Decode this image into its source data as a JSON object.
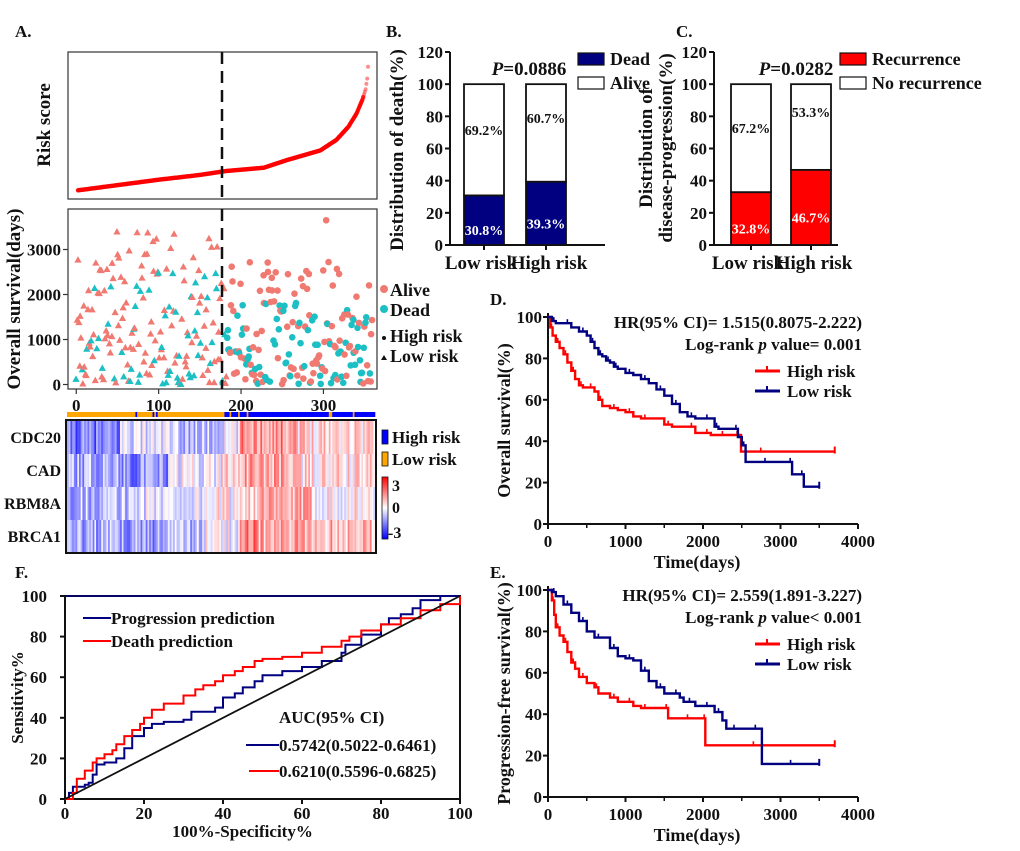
{
  "colors": {
    "dead_bar": "#000080",
    "recurrence_bar": "#ff0000",
    "high_risk_km": "#ff0000",
    "low_risk_km": "#000080",
    "alive_point": "#f07a72",
    "dead_point": "#1bbfc4",
    "heat_high_risk": "#0000ff",
    "heat_low_risk": "#ffa500",
    "heat_pos": "#ff0000",
    "heat_neg": "#0000ff",
    "risk_curve": "#ff0000"
  },
  "chart_data": [
    {
      "id": "A-risk",
      "panel_label": "A.",
      "type": "scatter",
      "title": "",
      "ylabel": "Risk score",
      "xlabel": "",
      "cutoff_index": 183,
      "n_patients": 360,
      "description": "Sorted risk score curve, slowly increasing then rising steeply at the top ranks",
      "curve_points": [
        [
          0,
          0.02
        ],
        [
          50,
          0.06
        ],
        [
          100,
          0.1
        ],
        [
          150,
          0.135
        ],
        [
          183,
          0.165
        ],
        [
          230,
          0.19
        ],
        [
          260,
          0.25
        ],
        [
          300,
          0.32
        ],
        [
          320,
          0.4
        ],
        [
          335,
          0.5
        ],
        [
          345,
          0.6
        ],
        [
          352,
          0.7
        ],
        [
          356,
          0.78
        ],
        [
          358,
          0.86
        ],
        [
          359,
          0.95
        ]
      ]
    },
    {
      "id": "A-survival",
      "type": "scatter",
      "ylabel": "Overall survival(days)",
      "xlabel": "",
      "x_ticks": [
        "0",
        "100",
        "200",
        "300"
      ],
      "y_ticks": [
        "0",
        "1000",
        "2000",
        "3000"
      ],
      "xlim": [
        -10,
        365
      ],
      "ylim": [
        -100,
        3900
      ],
      "cutoff_index": 183,
      "legend": [
        {
          "label": "Alive",
          "marker": "circle",
          "color_key": "alive_point"
        },
        {
          "label": "Dead",
          "marker": "circle",
          "color_key": "dead_point"
        },
        {
          "label": "High risk",
          "marker": "circle-black"
        },
        {
          "label": "Low risk",
          "marker": "triangle-black"
        }
      ]
    },
    {
      "id": "A-heatmap",
      "type": "heatmap",
      "genes": [
        "CDC20",
        "CAD",
        "RBM8A",
        "BRCA1"
      ],
      "legend_groups": [
        "High risk",
        "Low risk"
      ],
      "colorbar_ticks": [
        "3",
        "0",
        "-3"
      ],
      "value_range": [
        -3,
        3
      ]
    },
    {
      "id": "B",
      "panel_label": "B.",
      "type": "bar",
      "stacked": true,
      "categories": [
        "Low risk",
        "High risk"
      ],
      "series": [
        {
          "name": "Dead",
          "values": [
            30.8,
            39.3
          ],
          "labels": [
            "30.8%",
            "39.3%"
          ],
          "color_key": "dead_bar"
        },
        {
          "name": "Alive",
          "values": [
            69.2,
            60.7
          ],
          "labels": [
            "69.2%",
            "60.7%"
          ],
          "color": "#ffffff"
        }
      ],
      "ylabel": "Distribution of  death(%)",
      "ylim": [
        0,
        120
      ],
      "y_ticks": [
        "0",
        "20",
        "40",
        "60",
        "80",
        "100",
        "120"
      ],
      "annotation": "P=0.0886",
      "annotation_p": "P",
      "annotation_rest": "=0.0886",
      "legend_position": "top-right"
    },
    {
      "id": "C",
      "panel_label": "C.",
      "type": "bar",
      "stacked": true,
      "categories": [
        "Low risk",
        "High risk"
      ],
      "series": [
        {
          "name": "Recurrence",
          "values": [
            32.8,
            46.7
          ],
          "labels": [
            "32.8%",
            "46.7%"
          ],
          "color_key": "recurrence_bar"
        },
        {
          "name": "No recurrence",
          "values": [
            67.2,
            53.3
          ],
          "labels": [
            "67.2%",
            "53.3%"
          ],
          "color": "#ffffff"
        }
      ],
      "ylabel_line1": "Distribution of",
      "ylabel_line2": "disease-progression(%)",
      "ylim": [
        0,
        120
      ],
      "y_ticks": [
        "0",
        "20",
        "40",
        "60",
        "80",
        "100",
        "120"
      ],
      "annotation_p": "P",
      "annotation_rest": "=0.0282",
      "legend_position": "top-right"
    },
    {
      "id": "D",
      "panel_label": "D.",
      "type": "line",
      "xlabel": "Time(days)",
      "ylabel": "Overall survival(%)",
      "xlim": [
        0,
        4000
      ],
      "ylim": [
        0,
        100
      ],
      "x_ticks": [
        "0",
        "1000",
        "2000",
        "3000",
        "4000"
      ],
      "y_ticks": [
        "0",
        "20",
        "40",
        "60",
        "80",
        "100"
      ],
      "hr_text": "HR(95% CI)= 1.515(0.8075-2.222)",
      "logrank_prefix": "Log-rank ",
      "logrank_p": "p",
      "logrank_suffix": " value= 0.001",
      "legend_position": "top-right",
      "series": [
        {
          "name": "High risk",
          "color_key": "high_risk_km",
          "x": [
            0,
            30,
            60,
            100,
            150,
            200,
            250,
            300,
            350,
            400,
            450,
            500,
            600,
            650,
            700,
            800,
            900,
            1000,
            1100,
            1200,
            1300,
            1500,
            1600,
            1800,
            1900,
            2000,
            2100,
            2200,
            2300,
            2400,
            2480,
            2490,
            3000,
            3700
          ],
          "y": [
            100,
            95,
            91,
            88,
            85,
            82,
            78,
            74,
            70,
            67,
            66,
            66,
            64,
            60,
            57,
            56,
            55,
            54,
            52,
            51,
            51,
            48,
            47,
            47,
            44,
            44,
            43,
            43,
            43,
            43,
            43,
            35,
            35,
            35
          ]
        },
        {
          "name": "Low risk",
          "color_key": "low_risk_km",
          "x": [
            0,
            50,
            100,
            200,
            300,
            400,
            500,
            550,
            600,
            650,
            700,
            750,
            800,
            850,
            900,
            1000,
            1100,
            1200,
            1300,
            1400,
            1500,
            1600,
            1700,
            1800,
            1900,
            2000,
            2100,
            2150,
            2200,
            2400,
            2450,
            2500,
            2550,
            2600,
            3000,
            3100,
            3150,
            3250,
            3300,
            3500
          ],
          "y": [
            100,
            98,
            97,
            97,
            95,
            93,
            91,
            88,
            85,
            82,
            81,
            79,
            78,
            76,
            75,
            73,
            72,
            70,
            68,
            65,
            62,
            58,
            54,
            52,
            51,
            51,
            51,
            47,
            46,
            46,
            42,
            38,
            30,
            30,
            30,
            30,
            24,
            24,
            18,
            18
          ]
        }
      ]
    },
    {
      "id": "E",
      "panel_label": "E.",
      "type": "line",
      "xlabel": "Time(days)",
      "ylabel": "Progression-free survival(%)",
      "xlim": [
        0,
        4000
      ],
      "ylim": [
        0,
        100
      ],
      "x_ticks": [
        "0",
        "1000",
        "2000",
        "3000",
        "4000"
      ],
      "y_ticks": [
        "0",
        "20",
        "40",
        "60",
        "80",
        "100"
      ],
      "hr_text": "HR(95% CI)= 2.559(1.891-3.227)",
      "logrank_prefix": "Log-rank ",
      "logrank_p": "p",
      "logrank_suffix": " value< 0.001",
      "legend_position": "top-right",
      "series": [
        {
          "name": "High risk",
          "color_key": "high_risk_km",
          "x": [
            0,
            50,
            80,
            100,
            150,
            200,
            250,
            300,
            350,
            400,
            500,
            600,
            650,
            800,
            900,
            1000,
            1100,
            1200,
            1300,
            1500,
            1550,
            1700,
            1900,
            2000,
            2030,
            2300,
            3000,
            3700
          ],
          "y": [
            100,
            95,
            88,
            82,
            78,
            75,
            70,
            65,
            62,
            58,
            55,
            53,
            50,
            48,
            46,
            46,
            44,
            43,
            43,
            43,
            38,
            38,
            38,
            38,
            25,
            25,
            25,
            25
          ]
        },
        {
          "name": "Low risk",
          "color_key": "low_risk_km",
          "x": [
            0,
            50,
            100,
            200,
            300,
            400,
            500,
            600,
            700,
            800,
            900,
            1000,
            1100,
            1200,
            1300,
            1400,
            1500,
            1600,
            1700,
            1750,
            1900,
            2000,
            2100,
            2150,
            2250,
            2300,
            2500,
            2600,
            2750,
            2760,
            3500
          ],
          "y": [
            100,
            99,
            97,
            93,
            89,
            85,
            80,
            77,
            77,
            72,
            68,
            67,
            66,
            61,
            56,
            53,
            50,
            50,
            48,
            46,
            44,
            44,
            44,
            41,
            37,
            33,
            33,
            33,
            33,
            16,
            16
          ]
        }
      ]
    },
    {
      "id": "F",
      "panel_label": "F.",
      "type": "line",
      "xlabel": "100%-Specificity%",
      "ylabel": "Sensitivity%",
      "xlim": [
        0,
        100
      ],
      "ylim": [
        0,
        100
      ],
      "x_ticks": [
        "0",
        "20",
        "40",
        "60",
        "80",
        "100"
      ],
      "y_ticks": [
        "0",
        "20",
        "40",
        "60",
        "80",
        "100"
      ],
      "legend_position": "top-left",
      "auc_title": "AUC(95% CI)",
      "series": [
        {
          "name": "Progression prediction",
          "auc_label": "0.5742(0.5022-0.6461)",
          "color_key": "low_risk_km",
          "x": [
            0,
            1,
            2,
            5,
            6,
            7,
            8,
            10,
            13,
            15,
            17,
            20,
            22,
            25,
            30,
            32,
            38,
            40,
            43,
            45,
            48,
            50,
            55,
            60,
            65,
            70,
            71,
            75,
            80,
            82,
            85,
            88,
            90,
            95,
            100
          ],
          "y": [
            0,
            3,
            6,
            7,
            8,
            12,
            17,
            18,
            20,
            25,
            31,
            35,
            37,
            38,
            39,
            43,
            45,
            50,
            52,
            55,
            58,
            61,
            63,
            65,
            68,
            72,
            76,
            81,
            86,
            89,
            91,
            94,
            98,
            100,
            100
          ]
        },
        {
          "name": "Death prediction",
          "auc_label": "0.6210(0.5596-0.6825)",
          "color_key": "high_risk_km",
          "x": [
            0,
            2,
            3,
            5,
            7,
            8,
            10,
            12,
            13,
            15,
            17,
            19,
            20,
            22,
            25,
            28,
            30,
            33,
            35,
            38,
            40,
            43,
            45,
            48,
            50,
            55,
            60,
            65,
            70,
            72,
            75,
            80,
            85,
            90,
            95,
            100
          ],
          "y": [
            0,
            3,
            10,
            14,
            18,
            20,
            22,
            24,
            27,
            31,
            34,
            37,
            40,
            44,
            47,
            47,
            51,
            54,
            56,
            58,
            61,
            63,
            65,
            68,
            69,
            70,
            72,
            75,
            78,
            80,
            83,
            86,
            89,
            93,
            96,
            100
          ]
        },
        {
          "name": "Reference",
          "x": [
            0,
            100
          ],
          "y": [
            0,
            100
          ],
          "color": "#111111"
        }
      ]
    }
  ]
}
